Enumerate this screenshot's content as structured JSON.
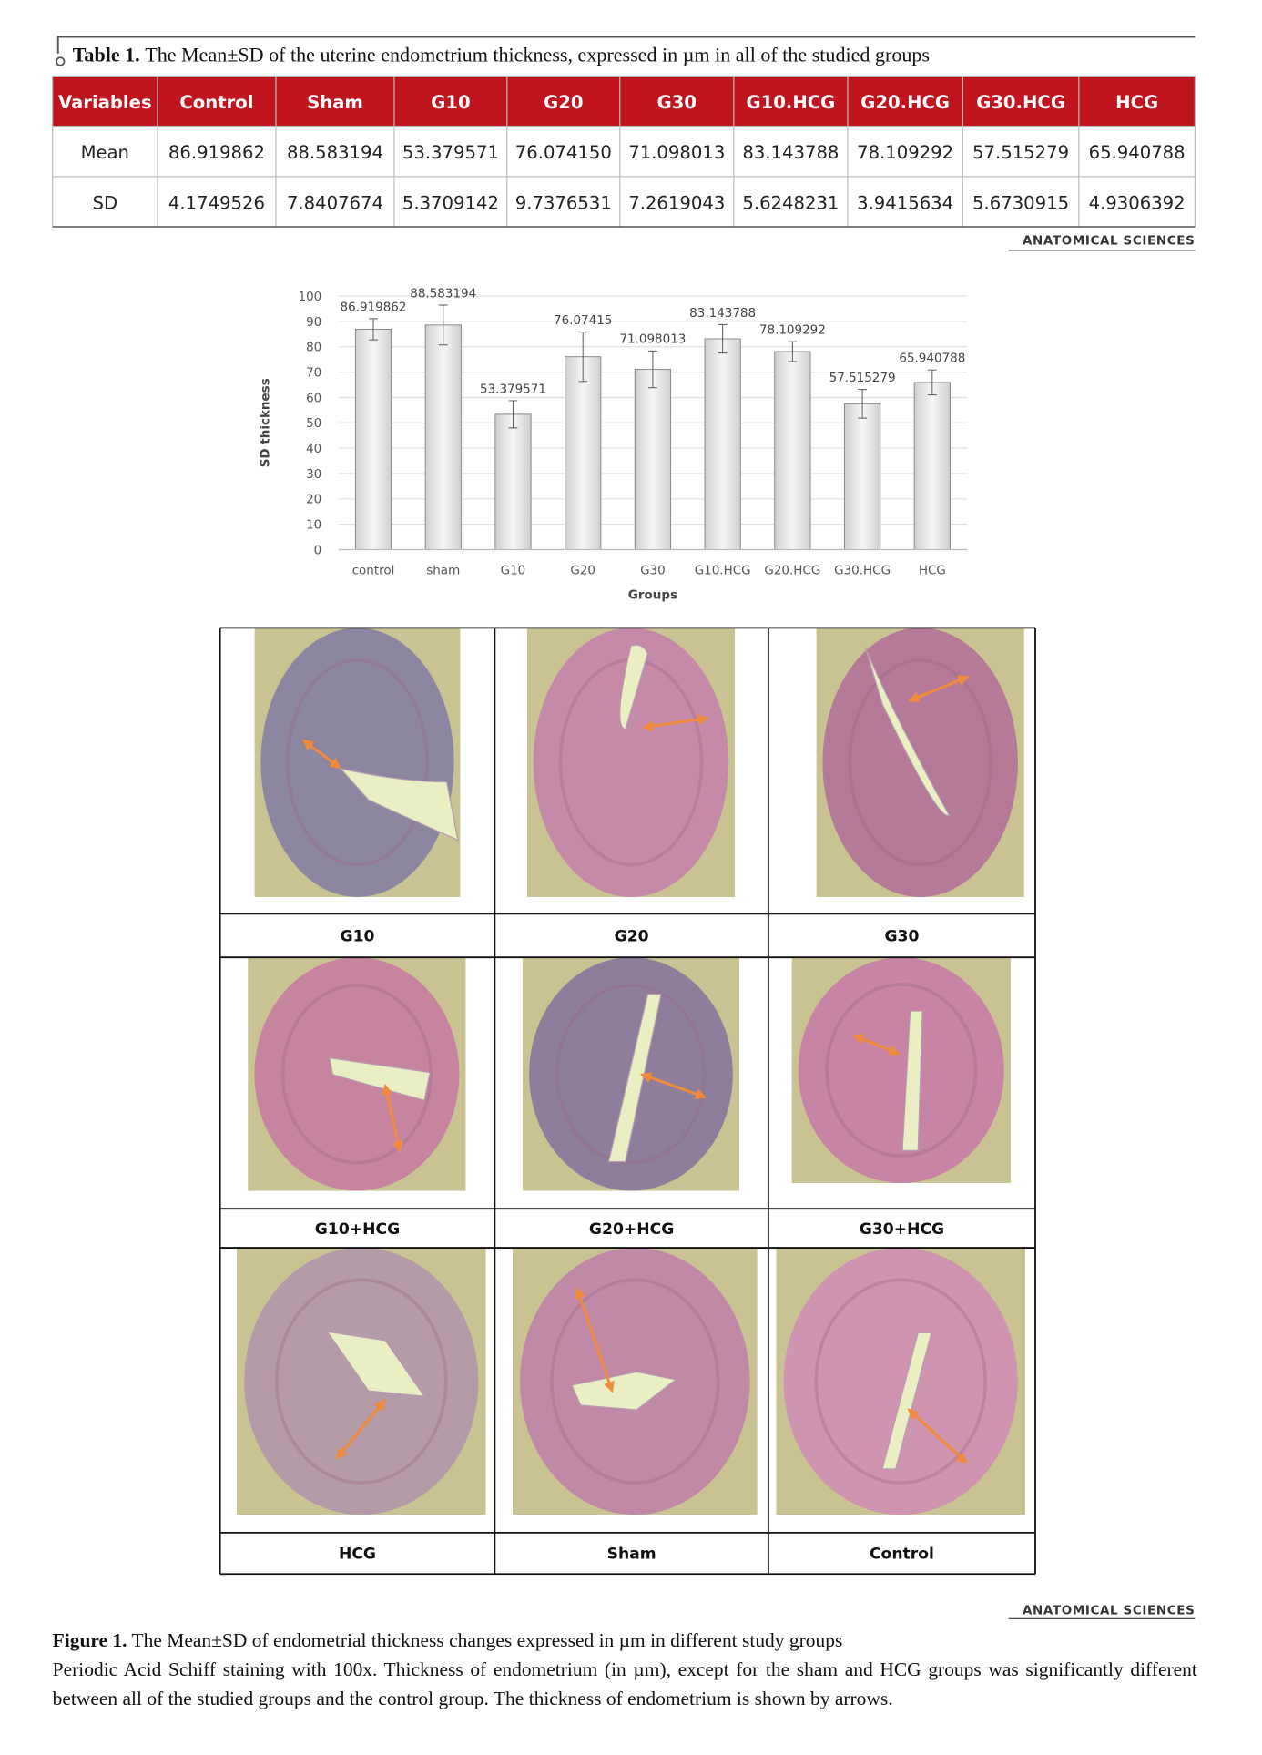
{
  "table": {
    "label": "Table 1.",
    "title": "The Mean±SD of the uterine endometrium thickness, expressed in µm in all of the studied groups",
    "header": [
      "Variables",
      "Control",
      "Sham",
      "G10",
      "G20",
      "G30",
      "G10.HCG",
      "G20.HCG",
      "G30.HCG",
      "HCG"
    ],
    "rows": [
      [
        "Mean",
        "86.919862",
        "88.583194",
        "53.379571",
        "76.074150",
        "71.098013",
        "83.143788",
        "78.109292",
        "57.515279",
        "65.940788"
      ],
      [
        "SD",
        "4.1749526",
        "7.8407674",
        "5.3709142",
        "9.7376531",
        "7.2619043",
        "5.6248231",
        "3.9415634",
        "5.6730915",
        "4.9306392"
      ]
    ]
  },
  "logo": "ANATOMICAL SCIENCES",
  "chart_data": {
    "type": "bar",
    "y_label": "SD thickness",
    "x_label": "Groups",
    "categories": [
      "control",
      "sham",
      "G10",
      "G20",
      "G30",
      "G10.HCG",
      "G20.HCG",
      "G30.HCG",
      "HCG"
    ],
    "values": [
      86.919862,
      88.583194,
      53.379571,
      76.07415,
      71.098013,
      83.143788,
      78.109292,
      57.515279,
      65.940788
    ],
    "errors": [
      4.1749526,
      7.8407674,
      5.3709142,
      9.7376531,
      7.2619043,
      5.6248231,
      3.9415634,
      5.6730915,
      4.9306392
    ],
    "color": "#e2e2e2",
    "ylim": [
      0,
      100
    ],
    "yticks": [
      0,
      10,
      20,
      30,
      40,
      50,
      60,
      70,
      80,
      90,
      100
    ],
    "grid": true
  },
  "panels": [
    "G10",
    "G20",
    "G30",
    "G10+HCG",
    "G20+HCG",
    "G30+HCG",
    "HCG",
    "Sham",
    "Control"
  ],
  "figure": {
    "label": "Figure 1.",
    "title": "The Mean±SD of endometrial thickness changes expressed in µm in different study groups",
    "note": "Periodic Acid Schiff staining with 100x. Thickness of endometrium (in µm), except for the sham and HCG groups was significantly different between all of the studied groups and the control group. The thickness of endometrium is shown by arrows."
  }
}
